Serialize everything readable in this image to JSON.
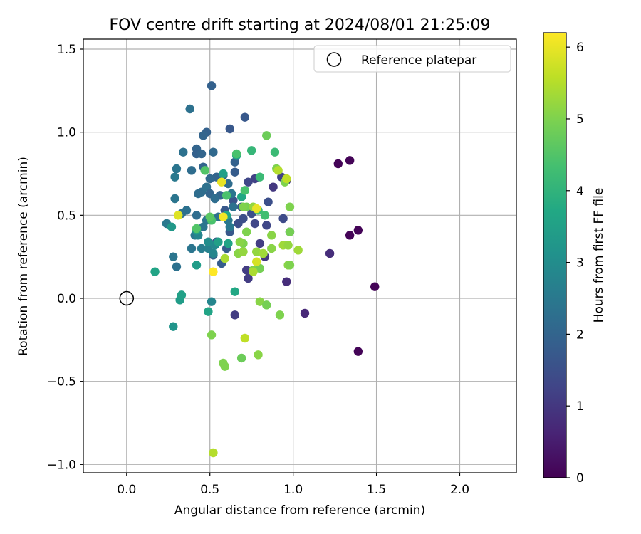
{
  "chart_data": {
    "type": "scatter",
    "title": "FOV centre drift starting at 2024/08/01 21:25:09",
    "xlabel": "Angular distance from reference (arcmin)",
    "ylabel": "Rotation from reference (arcmin)",
    "xlim": [
      -0.26,
      2.34
    ],
    "ylim": [
      -1.05,
      1.56
    ],
    "xticks": [
      0.0,
      0.5,
      1.0,
      1.5,
      2.0
    ],
    "xtick_labels": [
      "0.0",
      "0.5",
      "1.0",
      "1.5",
      "2.0"
    ],
    "yticks": [
      -1.0,
      -0.5,
      0.0,
      0.5,
      1.0,
      1.5
    ],
    "ytick_labels": [
      "−1.0",
      "−0.5",
      "0.0",
      "0.5",
      "1.0",
      "1.5"
    ],
    "grid": true,
    "legend": {
      "placement": "upper-right",
      "entries": [
        "Reference platepar"
      ]
    },
    "colorbar": {
      "label": "Hours from first FF file",
      "range": [
        0,
        6.2
      ],
      "ticks": [
        0,
        1,
        2,
        3,
        4,
        5,
        6
      ],
      "tick_labels": [
        "0",
        "1",
        "2",
        "3",
        "4",
        "5",
        "6"
      ],
      "colormap": "viridis"
    },
    "reference": {
      "x": 0.0,
      "y": 0.0,
      "label": "Reference platepar"
    },
    "points": [
      [
        1.27,
        0.81,
        0.05
      ],
      [
        1.34,
        0.83,
        0.05
      ],
      [
        1.39,
        0.41,
        0.05
      ],
      [
        1.34,
        0.38,
        0.05
      ],
      [
        1.49,
        0.07,
        0.05
      ],
      [
        1.39,
        -0.32,
        0.05
      ],
      [
        1.22,
        0.27,
        0.8
      ],
      [
        1.07,
        -0.09,
        0.7
      ],
      [
        0.96,
        0.1,
        0.8
      ],
      [
        0.65,
        -0.1,
        1.1
      ],
      [
        0.73,
        0.12,
        1.1
      ],
      [
        0.72,
        0.17,
        1.1
      ],
      [
        0.83,
        0.25,
        1.0
      ],
      [
        0.88,
        0.67,
        1.0
      ],
      [
        0.96,
        0.71,
        1.0
      ],
      [
        0.93,
        0.73,
        1.2
      ],
      [
        0.8,
        0.33,
        1.1
      ],
      [
        0.84,
        0.44,
        1.3
      ],
      [
        0.94,
        0.48,
        1.4
      ],
      [
        0.98,
        0.4,
        1.2
      ],
      [
        0.77,
        0.45,
        1.3
      ],
      [
        0.7,
        0.48,
        1.5
      ],
      [
        0.75,
        0.51,
        1.5
      ],
      [
        0.85,
        0.58,
        1.5
      ],
      [
        0.73,
        0.7,
        1.3
      ],
      [
        0.77,
        0.72,
        1.2
      ],
      [
        0.69,
        0.55,
        1.6
      ],
      [
        0.67,
        0.45,
        1.5
      ],
      [
        0.59,
        0.53,
        1.7
      ],
      [
        0.64,
        0.59,
        1.6
      ],
      [
        0.62,
        0.4,
        1.7
      ],
      [
        0.6,
        0.3,
        1.8
      ],
      [
        0.57,
        0.21,
        1.8
      ],
      [
        0.54,
        0.34,
        1.7
      ],
      [
        0.52,
        0.26,
        1.9
      ],
      [
        0.51,
        1.28,
        1.9
      ],
      [
        0.71,
        1.09,
        1.7
      ],
      [
        0.62,
        1.02,
        1.7
      ],
      [
        0.48,
        1.0,
        1.9
      ],
      [
        0.46,
        0.98,
        2.0
      ],
      [
        0.42,
        0.9,
        2.0
      ],
      [
        0.42,
        0.87,
        1.9
      ],
      [
        0.45,
        0.87,
        2.0
      ],
      [
        0.52,
        0.88,
        2.1
      ],
      [
        0.34,
        0.88,
        2.3
      ],
      [
        0.38,
        1.14,
        2.3
      ],
      [
        0.65,
        0.82,
        1.9
      ],
      [
        0.65,
        0.76,
        1.8
      ],
      [
        0.58,
        0.74,
        2.0
      ],
      [
        0.54,
        0.73,
        2.0
      ],
      [
        0.5,
        0.72,
        2.1
      ],
      [
        0.46,
        0.79,
        2.0
      ],
      [
        0.45,
        0.64,
        2.2
      ],
      [
        0.48,
        0.67,
        2.3
      ],
      [
        0.43,
        0.63,
        2.2
      ],
      [
        0.5,
        0.63,
        2.0
      ],
      [
        0.56,
        0.62,
        2.0
      ],
      [
        0.61,
        0.69,
        2.2
      ],
      [
        0.63,
        0.63,
        2.4
      ],
      [
        0.64,
        0.55,
        2.3
      ],
      [
        0.53,
        0.6,
        2.2
      ],
      [
        0.39,
        0.77,
        2.2
      ],
      [
        0.3,
        0.78,
        2.4
      ],
      [
        0.29,
        0.73,
        2.5
      ],
      [
        0.29,
        0.6,
        2.4
      ],
      [
        0.36,
        0.53,
        2.3
      ],
      [
        0.33,
        0.51,
        2.3
      ],
      [
        0.42,
        0.5,
        2.2
      ],
      [
        0.48,
        0.47,
        2.4
      ],
      [
        0.55,
        0.49,
        2.3
      ],
      [
        0.61,
        0.47,
        2.5
      ],
      [
        0.62,
        0.43,
        2.5
      ],
      [
        0.46,
        0.43,
        2.4
      ],
      [
        0.41,
        0.38,
        2.5
      ],
      [
        0.45,
        0.3,
        2.6
      ],
      [
        0.49,
        0.3,
        2.7
      ],
      [
        0.28,
        0.25,
        2.4
      ],
      [
        0.3,
        0.19,
        2.3
      ],
      [
        0.24,
        0.45,
        2.5
      ],
      [
        0.39,
        0.3,
        2.4
      ],
      [
        0.51,
        -0.02,
        2.8
      ],
      [
        0.43,
        0.38,
        2.8
      ],
      [
        0.52,
        0.27,
        2.8
      ],
      [
        0.53,
        0.32,
        2.9
      ],
      [
        0.49,
        0.34,
        3.0
      ],
      [
        0.28,
        -0.17,
        3.2
      ],
      [
        0.27,
        0.43,
        3.3
      ],
      [
        0.42,
        0.41,
        3.4
      ],
      [
        0.42,
        0.2,
        3.4
      ],
      [
        0.32,
        -0.01,
        3.4
      ],
      [
        0.33,
        0.02,
        3.5
      ],
      [
        0.17,
        0.16,
        3.6
      ],
      [
        0.49,
        -0.08,
        3.6
      ],
      [
        0.65,
        0.04,
        3.7
      ],
      [
        0.58,
        0.75,
        3.5
      ],
      [
        0.66,
        0.86,
        3.6
      ],
      [
        0.69,
        0.61,
        3.7
      ],
      [
        0.55,
        0.34,
        3.5
      ],
      [
        0.61,
        0.33,
        3.6
      ],
      [
        0.6,
        0.5,
        3.6
      ],
      [
        0.75,
        0.89,
        4.1
      ],
      [
        0.8,
        0.73,
        4.2
      ],
      [
        0.89,
        0.88,
        4.2
      ],
      [
        0.71,
        0.65,
        4.4
      ],
      [
        0.79,
        0.53,
        4.2
      ],
      [
        0.83,
        0.5,
        4.3
      ],
      [
        0.47,
        0.77,
        4.5
      ],
      [
        0.51,
        0.47,
        4.4
      ],
      [
        0.5,
        0.49,
        4.6
      ],
      [
        0.42,
        0.42,
        4.5
      ],
      [
        0.6,
        0.62,
        4.4
      ],
      [
        0.66,
        0.87,
        4.4
      ],
      [
        0.84,
        0.98,
        4.8
      ],
      [
        0.9,
        0.78,
        5.0
      ],
      [
        0.72,
        0.55,
        4.9
      ],
      [
        0.76,
        0.55,
        5.2
      ],
      [
        0.7,
        0.55,
        5.0
      ],
      [
        0.7,
        0.33,
        5.0
      ],
      [
        0.72,
        0.4,
        5.0
      ],
      [
        0.67,
        0.27,
        5.1
      ],
      [
        0.7,
        0.28,
        5.2
      ],
      [
        0.68,
        0.34,
        5.1
      ],
      [
        0.76,
        0.17,
        5.0
      ],
      [
        0.8,
        0.18,
        4.9
      ],
      [
        0.78,
        0.28,
        5.2
      ],
      [
        0.82,
        0.27,
        5.3
      ],
      [
        0.87,
        0.3,
        5.1
      ],
      [
        0.87,
        0.38,
        5.1
      ],
      [
        0.94,
        0.32,
        5.3
      ],
      [
        0.97,
        0.32,
        5.2
      ],
      [
        0.97,
        0.2,
        5.1
      ],
      [
        0.98,
        0.2,
        5.0
      ],
      [
        0.98,
        0.4,
        4.9
      ],
      [
        1.03,
        0.29,
        5.3
      ],
      [
        0.98,
        0.55,
        5.0
      ],
      [
        0.95,
        0.7,
        5.0
      ],
      [
        0.91,
        0.77,
        5.5
      ],
      [
        0.96,
        0.72,
        5.6
      ],
      [
        0.92,
        -0.1,
        5.0
      ],
      [
        0.8,
        -0.02,
        5.1
      ],
      [
        0.84,
        -0.04,
        4.9
      ],
      [
        0.51,
        -0.22,
        5.0
      ],
      [
        0.69,
        -0.36,
        4.8
      ],
      [
        0.58,
        -0.39,
        5.0
      ],
      [
        0.59,
        -0.41,
        5.0
      ],
      [
        0.79,
        -0.34,
        5.1
      ],
      [
        0.71,
        -0.24,
        5.6
      ],
      [
        0.52,
        -0.93,
        5.5
      ],
      [
        0.59,
        0.24,
        5.4
      ],
      [
        0.78,
        0.22,
        5.8
      ],
      [
        0.31,
        0.5,
        5.9
      ],
      [
        0.52,
        0.16,
        6.2
      ],
      [
        0.58,
        0.49,
        6.1
      ],
      [
        0.57,
        0.7,
        6.0
      ],
      [
        0.78,
        0.54,
        6.0
      ],
      [
        0.76,
        0.16,
        5.4
      ]
    ]
  }
}
